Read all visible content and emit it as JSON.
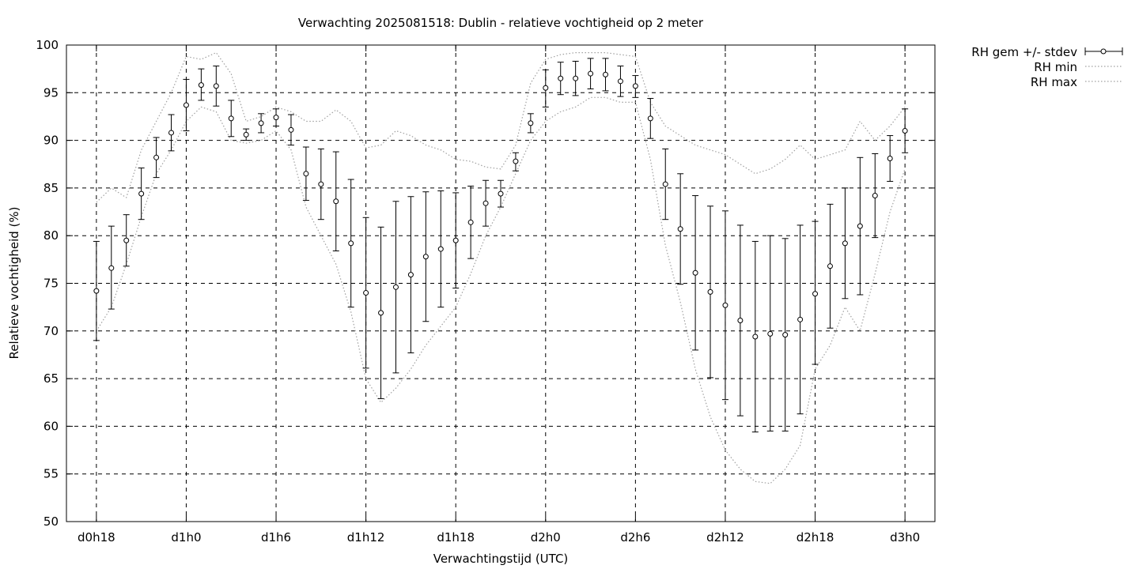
{
  "chart_data": {
    "type": "line",
    "title": "Verwachting 2025081518: Dublin - relatieve vochtigheid op 2 meter",
    "xlabel": "Verwachtingstijd (UTC)",
    "ylabel": "Relatieve vochtigheid (%)",
    "ylim": [
      50,
      100
    ],
    "yticks": [
      50,
      55,
      60,
      65,
      70,
      75,
      80,
      85,
      90,
      95,
      100
    ],
    "xlim": [
      16,
      74
    ],
    "xticks": [
      {
        "label": "d0h18",
        "value": 18
      },
      {
        "label": "d1h0",
        "value": 24
      },
      {
        "label": "d1h6",
        "value": 30
      },
      {
        "label": "d1h12",
        "value": 36
      },
      {
        "label": "d1h18",
        "value": 42
      },
      {
        "label": "d2h0",
        "value": 48
      },
      {
        "label": "d2h6",
        "value": 54
      },
      {
        "label": "d2h12",
        "value": 60
      },
      {
        "label": "d2h18",
        "value": 66
      },
      {
        "label": "d3h0",
        "value": 72
      }
    ],
    "grid": true,
    "legend_position": "outside-top-right",
    "series": [
      {
        "name": "RH gem +/- stdev",
        "style": "errorbars-points",
        "x": [
          18,
          19,
          20,
          21,
          22,
          23,
          24,
          25,
          26,
          27,
          28,
          29,
          30,
          31,
          32,
          33,
          34,
          35,
          36,
          37,
          38,
          39,
          40,
          41,
          42,
          43,
          44,
          45,
          46,
          47,
          48,
          49,
          50,
          51,
          52,
          53,
          54,
          55,
          56,
          57,
          58,
          59,
          60,
          61,
          62,
          63,
          64,
          65,
          66,
          67,
          68,
          69,
          70,
          71,
          72
        ],
        "mean": [
          74.2,
          76.6,
          79.5,
          84.4,
          88.2,
          90.8,
          93.7,
          95.8,
          95.7,
          92.3,
          90.6,
          91.8,
          92.4,
          91.1,
          86.5,
          85.4,
          83.6,
          79.2,
          74.0,
          71.9,
          74.6,
          75.9,
          77.8,
          78.6,
          79.5,
          81.4,
          83.4,
          84.4,
          87.8,
          91.8,
          95.5,
          96.5,
          96.5,
          97.0,
          96.9,
          96.2,
          95.7,
          92.3,
          85.4,
          80.7,
          76.1,
          74.1,
          72.7,
          71.1,
          69.4,
          69.7,
          69.6,
          71.2,
          73.9,
          76.8,
          79.2,
          81.0,
          84.2,
          88.1,
          91.0
        ],
        "low": [
          69.0,
          72.3,
          76.8,
          81.7,
          86.1,
          88.9,
          91.0,
          94.2,
          93.6,
          90.4,
          90.0,
          90.8,
          91.5,
          89.5,
          83.7,
          81.7,
          78.4,
          72.5,
          66.1,
          62.9,
          65.6,
          67.7,
          71.0,
          72.5,
          74.5,
          77.6,
          81.0,
          83.0,
          86.8,
          90.8,
          93.5,
          94.8,
          94.7,
          95.4,
          95.2,
          94.6,
          94.5,
          90.2,
          81.7,
          74.9,
          68.0,
          65.1,
          62.8,
          61.1,
          59.4,
          59.5,
          59.5,
          61.3,
          66.5,
          70.3,
          73.4,
          73.8,
          79.8,
          85.7,
          88.7
        ],
        "high": [
          79.4,
          81.0,
          82.2,
          87.1,
          90.3,
          92.7,
          96.4,
          97.5,
          97.8,
          94.2,
          91.2,
          92.8,
          93.3,
          92.7,
          89.3,
          89.1,
          88.8,
          85.9,
          81.9,
          80.9,
          83.6,
          84.1,
          84.6,
          84.7,
          84.5,
          85.2,
          85.8,
          85.8,
          88.7,
          92.8,
          97.4,
          98.2,
          98.3,
          98.6,
          98.6,
          97.8,
          96.8,
          94.4,
          89.1,
          86.5,
          84.2,
          83.1,
          82.6,
          81.1,
          79.4,
          80.0,
          79.7,
          81.1,
          81.5,
          83.3,
          85.0,
          88.2,
          88.6,
          90.5,
          93.3
        ]
      },
      {
        "name": "RH min",
        "style": "dotted",
        "x": [
          18,
          19,
          20,
          21,
          22,
          23,
          24,
          25,
          26,
          27,
          28,
          29,
          30,
          31,
          32,
          33,
          34,
          35,
          36,
          37,
          38,
          39,
          40,
          41,
          42,
          43,
          44,
          45,
          46,
          47,
          48,
          49,
          50,
          51,
          52,
          53,
          54,
          55,
          56,
          57,
          58,
          59,
          60,
          61,
          62,
          63,
          64,
          65,
          66,
          67,
          68,
          69,
          70,
          71,
          72
        ],
        "values": [
          70.0,
          72.5,
          77.0,
          82.0,
          86.5,
          89.0,
          92.0,
          93.5,
          93.0,
          90.0,
          89.7,
          90.0,
          91.0,
          89.0,
          83.0,
          80.0,
          77.0,
          72.0,
          65.0,
          62.5,
          64.0,
          66.0,
          68.5,
          70.5,
          72.5,
          76.0,
          80.0,
          83.0,
          86.5,
          90.0,
          92.0,
          93.0,
          93.5,
          94.5,
          94.5,
          94.0,
          94.0,
          88.0,
          79.0,
          73.0,
          66.0,
          61.0,
          57.5,
          55.5,
          54.2,
          54.0,
          55.5,
          58.0,
          66.0,
          68.5,
          72.5,
          70.0,
          76.0,
          82.5,
          87.0
        ]
      },
      {
        "name": "RH max",
        "style": "dotted",
        "x": [
          18,
          19,
          20,
          21,
          22,
          23,
          24,
          25,
          26,
          27,
          28,
          29,
          30,
          31,
          32,
          33,
          34,
          35,
          36,
          37,
          38,
          39,
          40,
          41,
          42,
          43,
          44,
          45,
          46,
          47,
          48,
          49,
          50,
          51,
          52,
          53,
          54,
          55,
          56,
          57,
          58,
          59,
          60,
          61,
          62,
          63,
          64,
          65,
          66,
          67,
          68,
          69,
          70,
          71,
          72
        ],
        "values": [
          83.5,
          85.0,
          84.0,
          89.0,
          92.0,
          95.0,
          98.8,
          98.5,
          99.2,
          97.0,
          92.0,
          92.5,
          93.5,
          93.0,
          92.0,
          92.0,
          93.2,
          92.0,
          89.2,
          89.5,
          91.0,
          90.5,
          89.5,
          89.0,
          88.0,
          87.8,
          87.2,
          87.0,
          89.5,
          96.0,
          98.5,
          99.0,
          99.2,
          99.2,
          99.2,
          99.0,
          98.8,
          94.0,
          91.5,
          90.5,
          89.5,
          89.0,
          88.5,
          87.5,
          86.5,
          87.0,
          88.0,
          89.5,
          88.0,
          88.5,
          89.0,
          92.0,
          90.0,
          91.5,
          93.5
        ]
      }
    ]
  }
}
